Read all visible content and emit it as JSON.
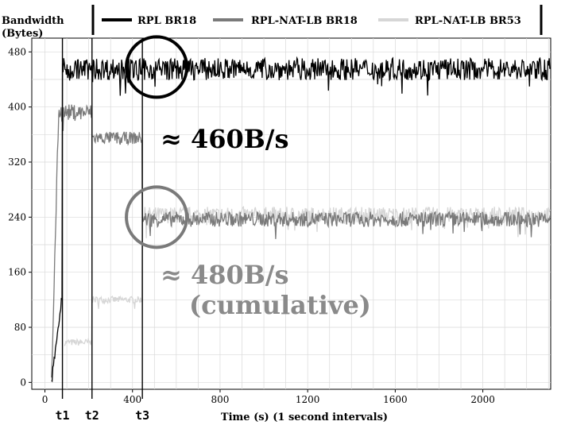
{
  "chart_data": {
    "type": "line",
    "ylabel_line1": "Bandwidth",
    "ylabel_line2": "(Bytes)",
    "xlabel": "Time (s)   (1 second intervals)",
    "xlim": [
      -60,
      2310
    ],
    "ylim": [
      -10,
      500
    ],
    "x_ticks": [
      0,
      400,
      800,
      1200,
      1600,
      2000
    ],
    "y_ticks": [
      0,
      80,
      160,
      240,
      320,
      400,
      480
    ],
    "grid": true,
    "legend_position": "top",
    "series": [
      {
        "name": "RPL BR18",
        "color": "#000000",
        "segments": [
          {
            "x0": 30,
            "x1": 80,
            "y0": 0,
            "y1": 130,
            "noise": 8
          },
          {
            "x0": 80,
            "x1": 2310,
            "y": 455,
            "noise": 16
          }
        ]
      },
      {
        "name": "RPL-NAT-LB BR18",
        "color": "#7a7a7a",
        "segments": [
          {
            "x0": 30,
            "x1": 65,
            "y0": 0,
            "y1": 420,
            "noise": 10
          },
          {
            "x0": 65,
            "x1": 215,
            "y": 392,
            "noise": 12
          },
          {
            "x0": 215,
            "x1": 445,
            "y": 355,
            "noise": 9
          },
          {
            "x0": 445,
            "x1": 2310,
            "y": 237,
            "noise": 11
          }
        ]
      },
      {
        "name": "RPL-NAT-LB BR53",
        "color": "#d6d6d6",
        "segments": [
          {
            "x0": 90,
            "x1": 215,
            "y": 58,
            "noise": 5
          },
          {
            "x0": 215,
            "x1": 445,
            "y": 120,
            "noise": 5
          },
          {
            "x0": 445,
            "x1": 2310,
            "y": 243,
            "noise": 12
          }
        ]
      }
    ],
    "event_markers": [
      {
        "label": "t1",
        "x": 80
      },
      {
        "label": "t2",
        "x": 215
      },
      {
        "label": "t3",
        "x": 445
      }
    ],
    "annotations": [
      {
        "text": "≈ 460B/s",
        "color": "#000000"
      },
      {
        "text": "≈ 480B/s",
        "color": "#8a8a8a"
      },
      {
        "text": "(cumulative)",
        "color": "#8a8a8a"
      }
    ],
    "highlight_circles": [
      {
        "cx": 510,
        "cy": 458,
        "color": "#000000"
      },
      {
        "cx": 510,
        "cy": 240,
        "color": "#7a7a7a"
      }
    ]
  }
}
